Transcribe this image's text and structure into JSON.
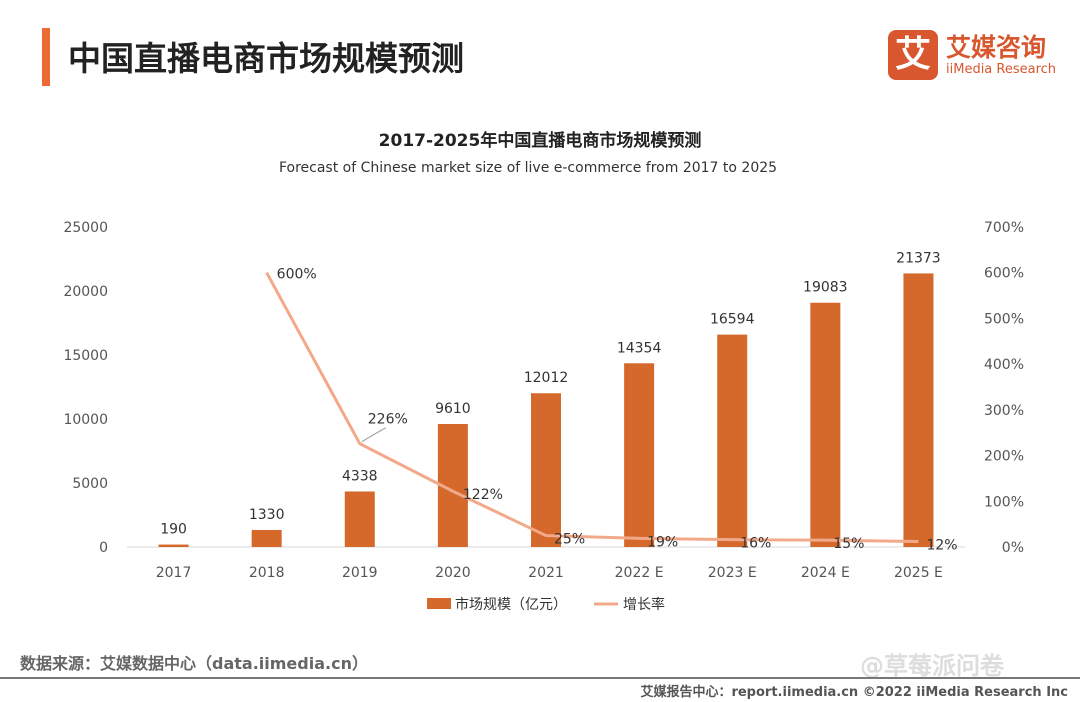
{
  "header": {
    "title": "中国直播电商市场规模预测"
  },
  "logo": {
    "mark": "艾",
    "cn": "艾媒咨询",
    "en": "iiMedia Research"
  },
  "footer": {
    "source": "数据来源：艾媒数据中心（data.iimedia.cn）",
    "watermark": "@草莓派问卷",
    "credit": "艾媒报告中心：report.iimedia.cn  ©2022  iiMedia Research Inc"
  },
  "colors": {
    "bar": "#d4692b",
    "line": "#f2a98a",
    "accent": "#ee6a35"
  },
  "chart_data": {
    "type": "bar+line",
    "title": "2017-2025年中国直播电商市场规模预测",
    "subtitle": "Forecast of Chinese market size of live e-commerce from 2017 to 2025",
    "categories": [
      "2017",
      "2018",
      "2019",
      "2020",
      "2021",
      "2022 E",
      "2023 E",
      "2024 E",
      "2025 E"
    ],
    "series": [
      {
        "name": "市场规模（亿元）",
        "type": "bar",
        "axis": "left",
        "values": [
          190,
          1330,
          4338,
          9610,
          12012,
          14354,
          16594,
          19083,
          21373
        ],
        "labels": [
          "190",
          "1330",
          "4338",
          "9610",
          "12012",
          "14354",
          "16594",
          "19083",
          "21373"
        ]
      },
      {
        "name": "增长率",
        "type": "line",
        "axis": "right",
        "values": [
          null,
          600,
          226,
          122,
          25,
          19,
          16,
          15,
          12
        ],
        "labels": [
          "",
          "600%",
          "226%",
          "122%",
          "25%",
          "19%",
          "16%",
          "15%",
          "12%"
        ]
      }
    ],
    "ylim": [
      0,
      25000
    ],
    "yticks": [
      "0",
      "5000",
      "10000",
      "15000",
      "20000",
      "25000"
    ],
    "y2lim": [
      0,
      700
    ],
    "y2ticks": [
      "0%",
      "100%",
      "200%",
      "300%",
      "400%",
      "500%",
      "600%",
      "700%"
    ],
    "grid": false,
    "legend": "bottom"
  }
}
